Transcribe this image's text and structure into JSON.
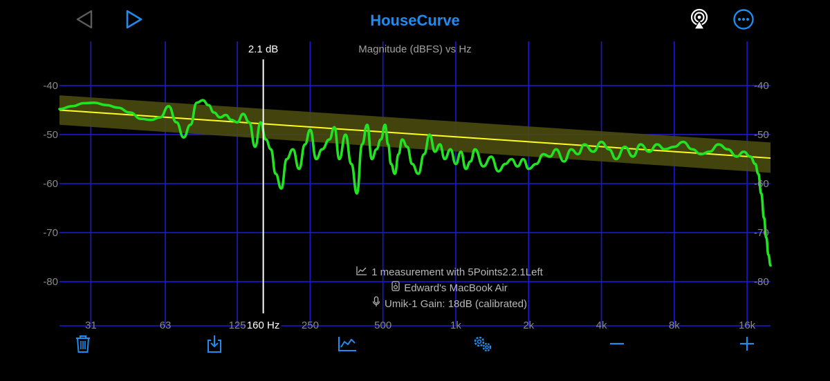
{
  "app": {
    "title": "HouseCurve"
  },
  "colors": {
    "accent": "#1e8cf0",
    "grid": "#1a1ad0",
    "measurement": "#22e222",
    "target": "#ffff1e",
    "target_band": "#4a4a10"
  },
  "icons": {
    "back": "triangle-left-icon",
    "forward": "triangle-right-icon",
    "airplay": "airplay-icon",
    "more": "ellipsis-circle-icon",
    "delete": "trash-icon",
    "export": "download-icon",
    "chart": "chart-line-icon",
    "settings": "gears-icon",
    "zoom_out": "minus-icon",
    "zoom_in": "plus-icon"
  },
  "cursor": {
    "value_label": "2.1 dB",
    "freq_label": "160 Hz",
    "freq_hz": 160
  },
  "info": {
    "measurement": "1 measurement with 5Points2.2.1Left",
    "device": "Edward's MacBook Air",
    "mic": "Umik-1  Gain: 18dB (calibrated)"
  },
  "chart_data": {
    "type": "line",
    "title": "Magnitude (dBFS) vs Hz",
    "xscale": "log",
    "xlim": [
      23,
      20000
    ],
    "ylim": [
      -89,
      -31
    ],
    "x_ticks": [
      "31",
      "63",
      "125",
      "250",
      "500",
      "1k",
      "2k",
      "4k",
      "8k",
      "16k"
    ],
    "x_tick_values": [
      31,
      63,
      125,
      250,
      500,
      1000,
      2000,
      4000,
      8000,
      16000
    ],
    "y_ticks": [
      -40,
      -50,
      -60,
      -70,
      -80
    ],
    "y_tick_labels": [
      "-40",
      "-50",
      "-60",
      "-70",
      "-80"
    ],
    "grid": true,
    "target": {
      "x": [
        23,
        20000
      ],
      "y": [
        -45.0,
        -54.8
      ],
      "band_upper": [
        -42.0,
        -51.6
      ],
      "band_lower": [
        -48.0,
        -57.8
      ]
    },
    "series": [
      {
        "x": [
          23,
          26,
          29,
          32,
          36,
          40,
          45,
          50,
          55,
          60,
          65,
          70,
          75,
          80,
          85,
          90,
          95,
          100,
          106,
          112,
          118,
          125,
          132,
          140,
          148,
          156,
          164,
          172,
          180,
          190,
          200,
          212,
          225,
          238,
          250,
          265,
          280,
          300,
          315,
          330,
          350,
          370,
          390,
          410,
          430,
          450,
          470,
          490,
          510,
          525,
          540,
          560,
          580,
          600,
          630,
          660,
          700,
          740,
          780,
          820,
          860,
          900,
          950,
          1000,
          1050,
          1100,
          1150,
          1200,
          1300,
          1400,
          1500,
          1600,
          1700,
          1800,
          1900,
          2000,
          2150,
          2300,
          2450,
          2600,
          2800,
          3000,
          3200,
          3400,
          3700,
          4000,
          4300,
          4600,
          5000,
          5400,
          5800,
          6300,
          6800,
          7300,
          8000,
          8700,
          9500,
          10300,
          11200,
          12200,
          13300,
          14500,
          15500,
          16500,
          17300,
          17800,
          18300,
          18800,
          19200,
          19600,
          20000
        ],
        "y": [
          -44.8,
          -44.2,
          -43.6,
          -43.5,
          -44.0,
          -44.5,
          -45.5,
          -46.8,
          -47.0,
          -46.5,
          -44.2,
          -47.5,
          -50.6,
          -48.0,
          -43.5,
          -43.0,
          -44.0,
          -45.5,
          -46.5,
          -46.0,
          -47.0,
          -47.5,
          -45.8,
          -47.5,
          -52.5,
          -47.5,
          -51.0,
          -53.0,
          -58.0,
          -61.0,
          -55.0,
          -53.0,
          -57.0,
          -52.0,
          -49.0,
          -55.0,
          -53.0,
          -51.0,
          -48.5,
          -55.0,
          -50.0,
          -56.0,
          -62.0,
          -52.0,
          -48.0,
          -55.0,
          -53.0,
          -51.0,
          -48.0,
          -52.0,
          -56.0,
          -58.0,
          -54.0,
          -51.0,
          -52.5,
          -56.0,
          -58.0,
          -54.0,
          -50.0,
          -53.5,
          -52.0,
          -55.0,
          -53.0,
          -56.0,
          -53.5,
          -57.0,
          -55.5,
          -53.0,
          -56.5,
          -54.5,
          -57.5,
          -56.0,
          -55.0,
          -56.5,
          -55.0,
          -57.0,
          -56.0,
          -54.0,
          -54.5,
          -53.0,
          -55.5,
          -53.0,
          -54.0,
          -52.0,
          -53.5,
          -51.5,
          -53.0,
          -55.0,
          -52.5,
          -54.5,
          -52.0,
          -53.5,
          -52.0,
          -53.0,
          -52.5,
          -51.5,
          -53.0,
          -54.0,
          -53.5,
          -52.0,
          -53.0,
          -54.5,
          -53.5,
          -54.5,
          -56.0,
          -58.0,
          -62.0,
          -67.0,
          -71.0,
          -74.5,
          -76.7
        ]
      }
    ]
  }
}
